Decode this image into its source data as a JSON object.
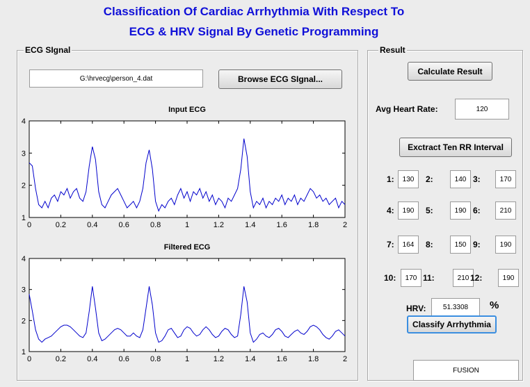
{
  "title": {
    "line1": "Classification Of Cardiac Arrhythmia With Respect To",
    "line2": "ECG & HRV Signal By Genetic Programming"
  },
  "ecg_panel": {
    "label": "ECG SIgnal",
    "file_path": "G:\\hrvecg\\person_4.dat",
    "browse_button": "Browse ECG SIgnal..."
  },
  "chart_data": [
    {
      "type": "line",
      "title": "Input ECG",
      "color": "#0000cc",
      "x": [
        0,
        0.02,
        0.04,
        0.06,
        0.08,
        0.1,
        0.12,
        0.14,
        0.16,
        0.18,
        0.2,
        0.22,
        0.24,
        0.26,
        0.28,
        0.3,
        0.32,
        0.34,
        0.36,
        0.38,
        0.4,
        0.42,
        0.44,
        0.46,
        0.48,
        0.5,
        0.52,
        0.54,
        0.56,
        0.58,
        0.6,
        0.62,
        0.64,
        0.66,
        0.68,
        0.7,
        0.72,
        0.74,
        0.76,
        0.78,
        0.8,
        0.82,
        0.84,
        0.86,
        0.88,
        0.9,
        0.92,
        0.94,
        0.96,
        0.98,
        1,
        1.02,
        1.04,
        1.06,
        1.08,
        1.1,
        1.12,
        1.14,
        1.16,
        1.18,
        1.2,
        1.22,
        1.24,
        1.26,
        1.28,
        1.3,
        1.32,
        1.34,
        1.36,
        1.38,
        1.4,
        1.42,
        1.44,
        1.46,
        1.48,
        1.5,
        1.52,
        1.54,
        1.56,
        1.58,
        1.6,
        1.62,
        1.64,
        1.66,
        1.68,
        1.7,
        1.72,
        1.74,
        1.76,
        1.78,
        1.8,
        1.82,
        1.84,
        1.86,
        1.88,
        1.9,
        1.92,
        1.94,
        1.96,
        1.98,
        2
      ],
      "values": [
        2.7,
        2.6,
        1.9,
        1.4,
        1.3,
        1.5,
        1.3,
        1.6,
        1.7,
        1.5,
        1.8,
        1.7,
        1.9,
        1.6,
        1.8,
        1.9,
        1.6,
        1.5,
        1.8,
        2.6,
        3.2,
        2.8,
        1.8,
        1.4,
        1.3,
        1.5,
        1.7,
        1.8,
        1.9,
        1.7,
        1.5,
        1.3,
        1.4,
        1.5,
        1.3,
        1.5,
        1.9,
        2.7,
        3.1,
        2.5,
        1.5,
        1.2,
        1.4,
        1.3,
        1.5,
        1.6,
        1.4,
        1.7,
        1.9,
        1.6,
        1.8,
        1.5,
        1.8,
        1.7,
        1.9,
        1.6,
        1.8,
        1.5,
        1.7,
        1.4,
        1.6,
        1.5,
        1.3,
        1.6,
        1.5,
        1.7,
        1.9,
        2.5,
        3.45,
        2.9,
        1.8,
        1.3,
        1.5,
        1.4,
        1.6,
        1.3,
        1.5,
        1.4,
        1.6,
        1.5,
        1.7,
        1.4,
        1.6,
        1.5,
        1.7,
        1.4,
        1.6,
        1.5,
        1.7,
        1.9,
        1.8,
        1.6,
        1.7,
        1.5,
        1.6,
        1.4,
        1.5,
        1.6,
        1.3,
        1.5,
        1.4
      ],
      "xlim": [
        0,
        2
      ],
      "ylim": [
        1,
        4
      ],
      "xticks": [
        0,
        0.2,
        0.4,
        0.6,
        0.8,
        1,
        1.2,
        1.4,
        1.6,
        1.8,
        2
      ],
      "yticks": [
        1,
        2,
        3,
        4
      ]
    },
    {
      "type": "line",
      "title": "Filtered ECG",
      "color": "#0000cc",
      "x": [
        0,
        0.02,
        0.04,
        0.06,
        0.08,
        0.1,
        0.12,
        0.14,
        0.16,
        0.18,
        0.2,
        0.22,
        0.24,
        0.26,
        0.28,
        0.3,
        0.32,
        0.34,
        0.36,
        0.38,
        0.4,
        0.42,
        0.44,
        0.46,
        0.48,
        0.5,
        0.52,
        0.54,
        0.56,
        0.58,
        0.6,
        0.62,
        0.64,
        0.66,
        0.68,
        0.7,
        0.72,
        0.74,
        0.76,
        0.78,
        0.8,
        0.82,
        0.84,
        0.86,
        0.88,
        0.9,
        0.92,
        0.94,
        0.96,
        0.98,
        1,
        1.02,
        1.04,
        1.06,
        1.08,
        1.1,
        1.12,
        1.14,
        1.16,
        1.18,
        1.2,
        1.22,
        1.24,
        1.26,
        1.28,
        1.3,
        1.32,
        1.34,
        1.36,
        1.38,
        1.4,
        1.42,
        1.44,
        1.46,
        1.48,
        1.5,
        1.52,
        1.54,
        1.56,
        1.58,
        1.6,
        1.62,
        1.64,
        1.66,
        1.68,
        1.7,
        1.72,
        1.74,
        1.76,
        1.78,
        1.8,
        1.82,
        1.84,
        1.86,
        1.88,
        1.9,
        1.92,
        1.94,
        1.96,
        1.98,
        2
      ],
      "values": [
        2.85,
        2.3,
        1.7,
        1.4,
        1.3,
        1.4,
        1.45,
        1.5,
        1.6,
        1.7,
        1.8,
        1.85,
        1.85,
        1.8,
        1.7,
        1.6,
        1.5,
        1.45,
        1.6,
        2.3,
        3.1,
        2.4,
        1.6,
        1.35,
        1.4,
        1.5,
        1.6,
        1.7,
        1.75,
        1.7,
        1.6,
        1.5,
        1.5,
        1.6,
        1.5,
        1.45,
        1.7,
        2.4,
        3.1,
        2.5,
        1.6,
        1.3,
        1.35,
        1.5,
        1.7,
        1.75,
        1.6,
        1.45,
        1.5,
        1.7,
        1.8,
        1.75,
        1.6,
        1.5,
        1.55,
        1.7,
        1.8,
        1.7,
        1.55,
        1.45,
        1.5,
        1.65,
        1.75,
        1.7,
        1.55,
        1.45,
        1.5,
        2.2,
        3.1,
        2.6,
        1.6,
        1.3,
        1.4,
        1.55,
        1.6,
        1.5,
        1.45,
        1.55,
        1.7,
        1.75,
        1.65,
        1.5,
        1.45,
        1.55,
        1.65,
        1.7,
        1.6,
        1.55,
        1.65,
        1.8,
        1.85,
        1.8,
        1.7,
        1.55,
        1.45,
        1.4,
        1.5,
        1.65,
        1.7,
        1.6,
        1.5
      ],
      "xlim": [
        0,
        2
      ],
      "ylim": [
        1,
        4
      ],
      "xticks": [
        0,
        0.2,
        0.4,
        0.6,
        0.8,
        1,
        1.2,
        1.4,
        1.6,
        1.8,
        2
      ],
      "yticks": [
        1,
        2,
        3,
        4
      ]
    }
  ],
  "result_panel": {
    "label": "Result",
    "calculate_button": "Calculate Result",
    "avg_heart_rate_label": "Avg Heart Rate:",
    "avg_heart_rate": "120",
    "extract_button": "Exctract Ten RR Interval",
    "rr_intervals": [
      {
        "label": "1:",
        "value": "130"
      },
      {
        "label": "2:",
        "value": "140"
      },
      {
        "label": "3:",
        "value": "170"
      },
      {
        "label": "4:",
        "value": "190"
      },
      {
        "label": "5:",
        "value": "190"
      },
      {
        "label": "6:",
        "value": "210"
      },
      {
        "label": "7:",
        "value": "164"
      },
      {
        "label": "8:",
        "value": "150"
      },
      {
        "label": "9:",
        "value": "190"
      },
      {
        "label": "10:",
        "value": "170"
      },
      {
        "label": "11:",
        "value": "210"
      },
      {
        "label": "12:",
        "value": "190"
      }
    ],
    "hrv_label": "HRV:",
    "hrv_value": "51.3308",
    "hrv_unit": "%",
    "classify_button": "Classify Arrhythmia",
    "result": "FUSION"
  }
}
